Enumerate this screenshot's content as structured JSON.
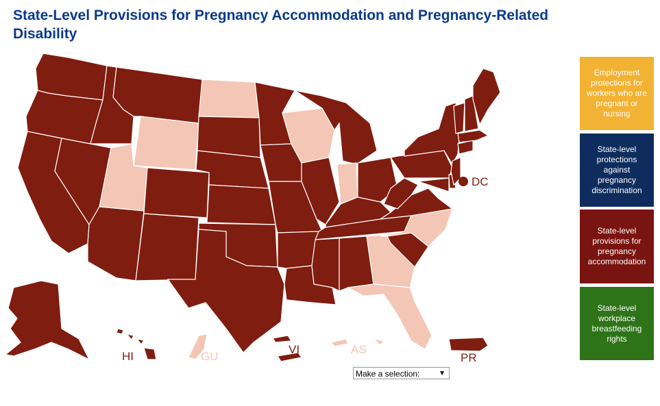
{
  "title": "State-Level Provisions for Pregnancy Accommodation and Pregnancy-Related Disability",
  "colors": {
    "active": "#7f1d10",
    "inactive": "#f4c6b5"
  },
  "territory_labels": {
    "hi": "HI",
    "gu": "GU",
    "vi": "VI",
    "as": "AS",
    "pr": "PR",
    "dc": "DC"
  },
  "dropdown": {
    "selected": "Make a selection:",
    "arrow_icon": "caret-down-icon"
  },
  "legend": [
    {
      "label": "Employment protections for workers who are pregnant or nursing",
      "color": "#f2b233"
    },
    {
      "label": "State-level protections against pregnancy discrimination",
      "color": "#0e2d5e"
    },
    {
      "label": "State-level provisions for pregnancy accommodation",
      "color": "#7a1410"
    },
    {
      "label": "State-level workplace breastfeeding rights",
      "color": "#2e7318"
    }
  ]
}
